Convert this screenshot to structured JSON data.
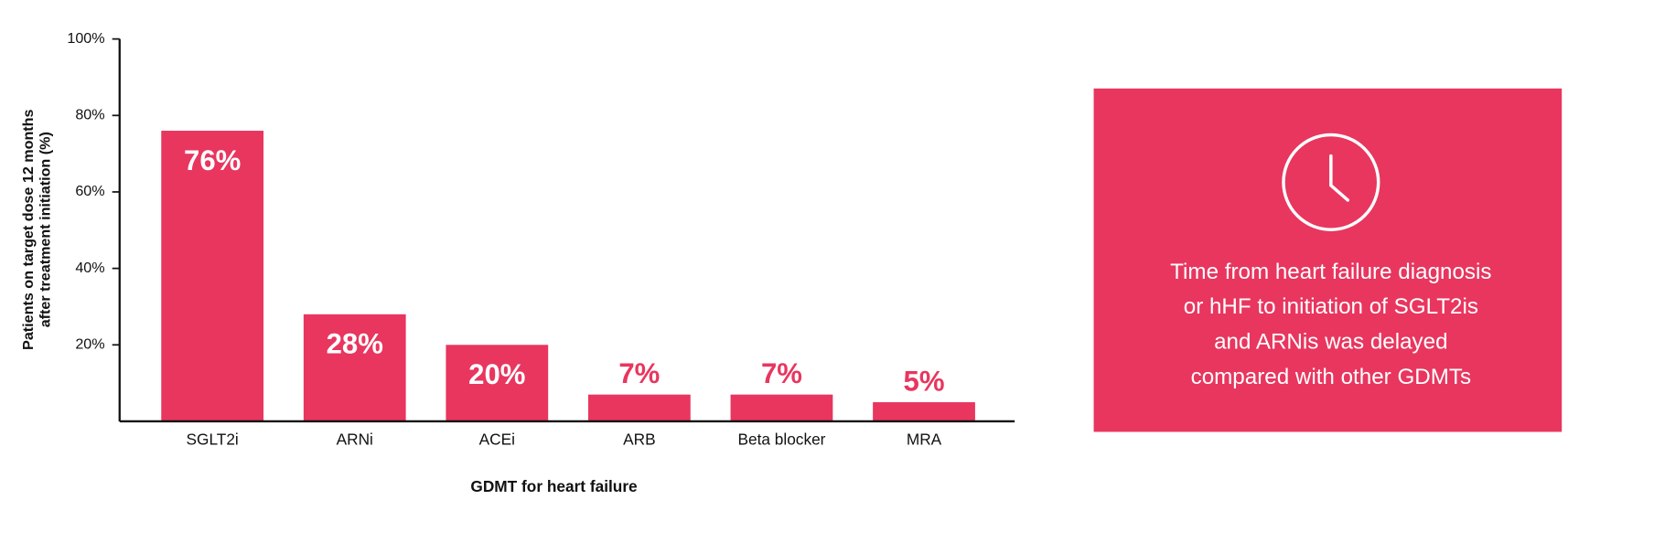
{
  "chart_data": {
    "type": "bar",
    "x_label": "GDMT for heart failure",
    "y_label": [
      "Patients on target dose 12 months",
      "after treatment initiation (%)"
    ],
    "categories": [
      "SGLT2i",
      "ARNi",
      "ACEi",
      "ARB",
      "Beta blocker",
      "MRA"
    ],
    "values": [
      76,
      28,
      20,
      7,
      7,
      5
    ],
    "value_labels": [
      "76%",
      "28%",
      "20%",
      "7%",
      "7%",
      "5%"
    ],
    "color": "#e8365f",
    "ylim": [
      0,
      100
    ],
    "yticks": [
      {
        "value": 20,
        "label": "20%"
      },
      {
        "value": 40,
        "label": "40%"
      },
      {
        "value": 60,
        "label": "60%"
      },
      {
        "value": 80,
        "label": "80%"
      },
      {
        "value": 100,
        "label": "100%"
      }
    ]
  },
  "callout": {
    "lines": [
      "Time from heart failure diagnosis",
      "or hHF to initiation of SGLT2is",
      "and ARNis was delayed",
      "compared with other GDMTs"
    ]
  }
}
